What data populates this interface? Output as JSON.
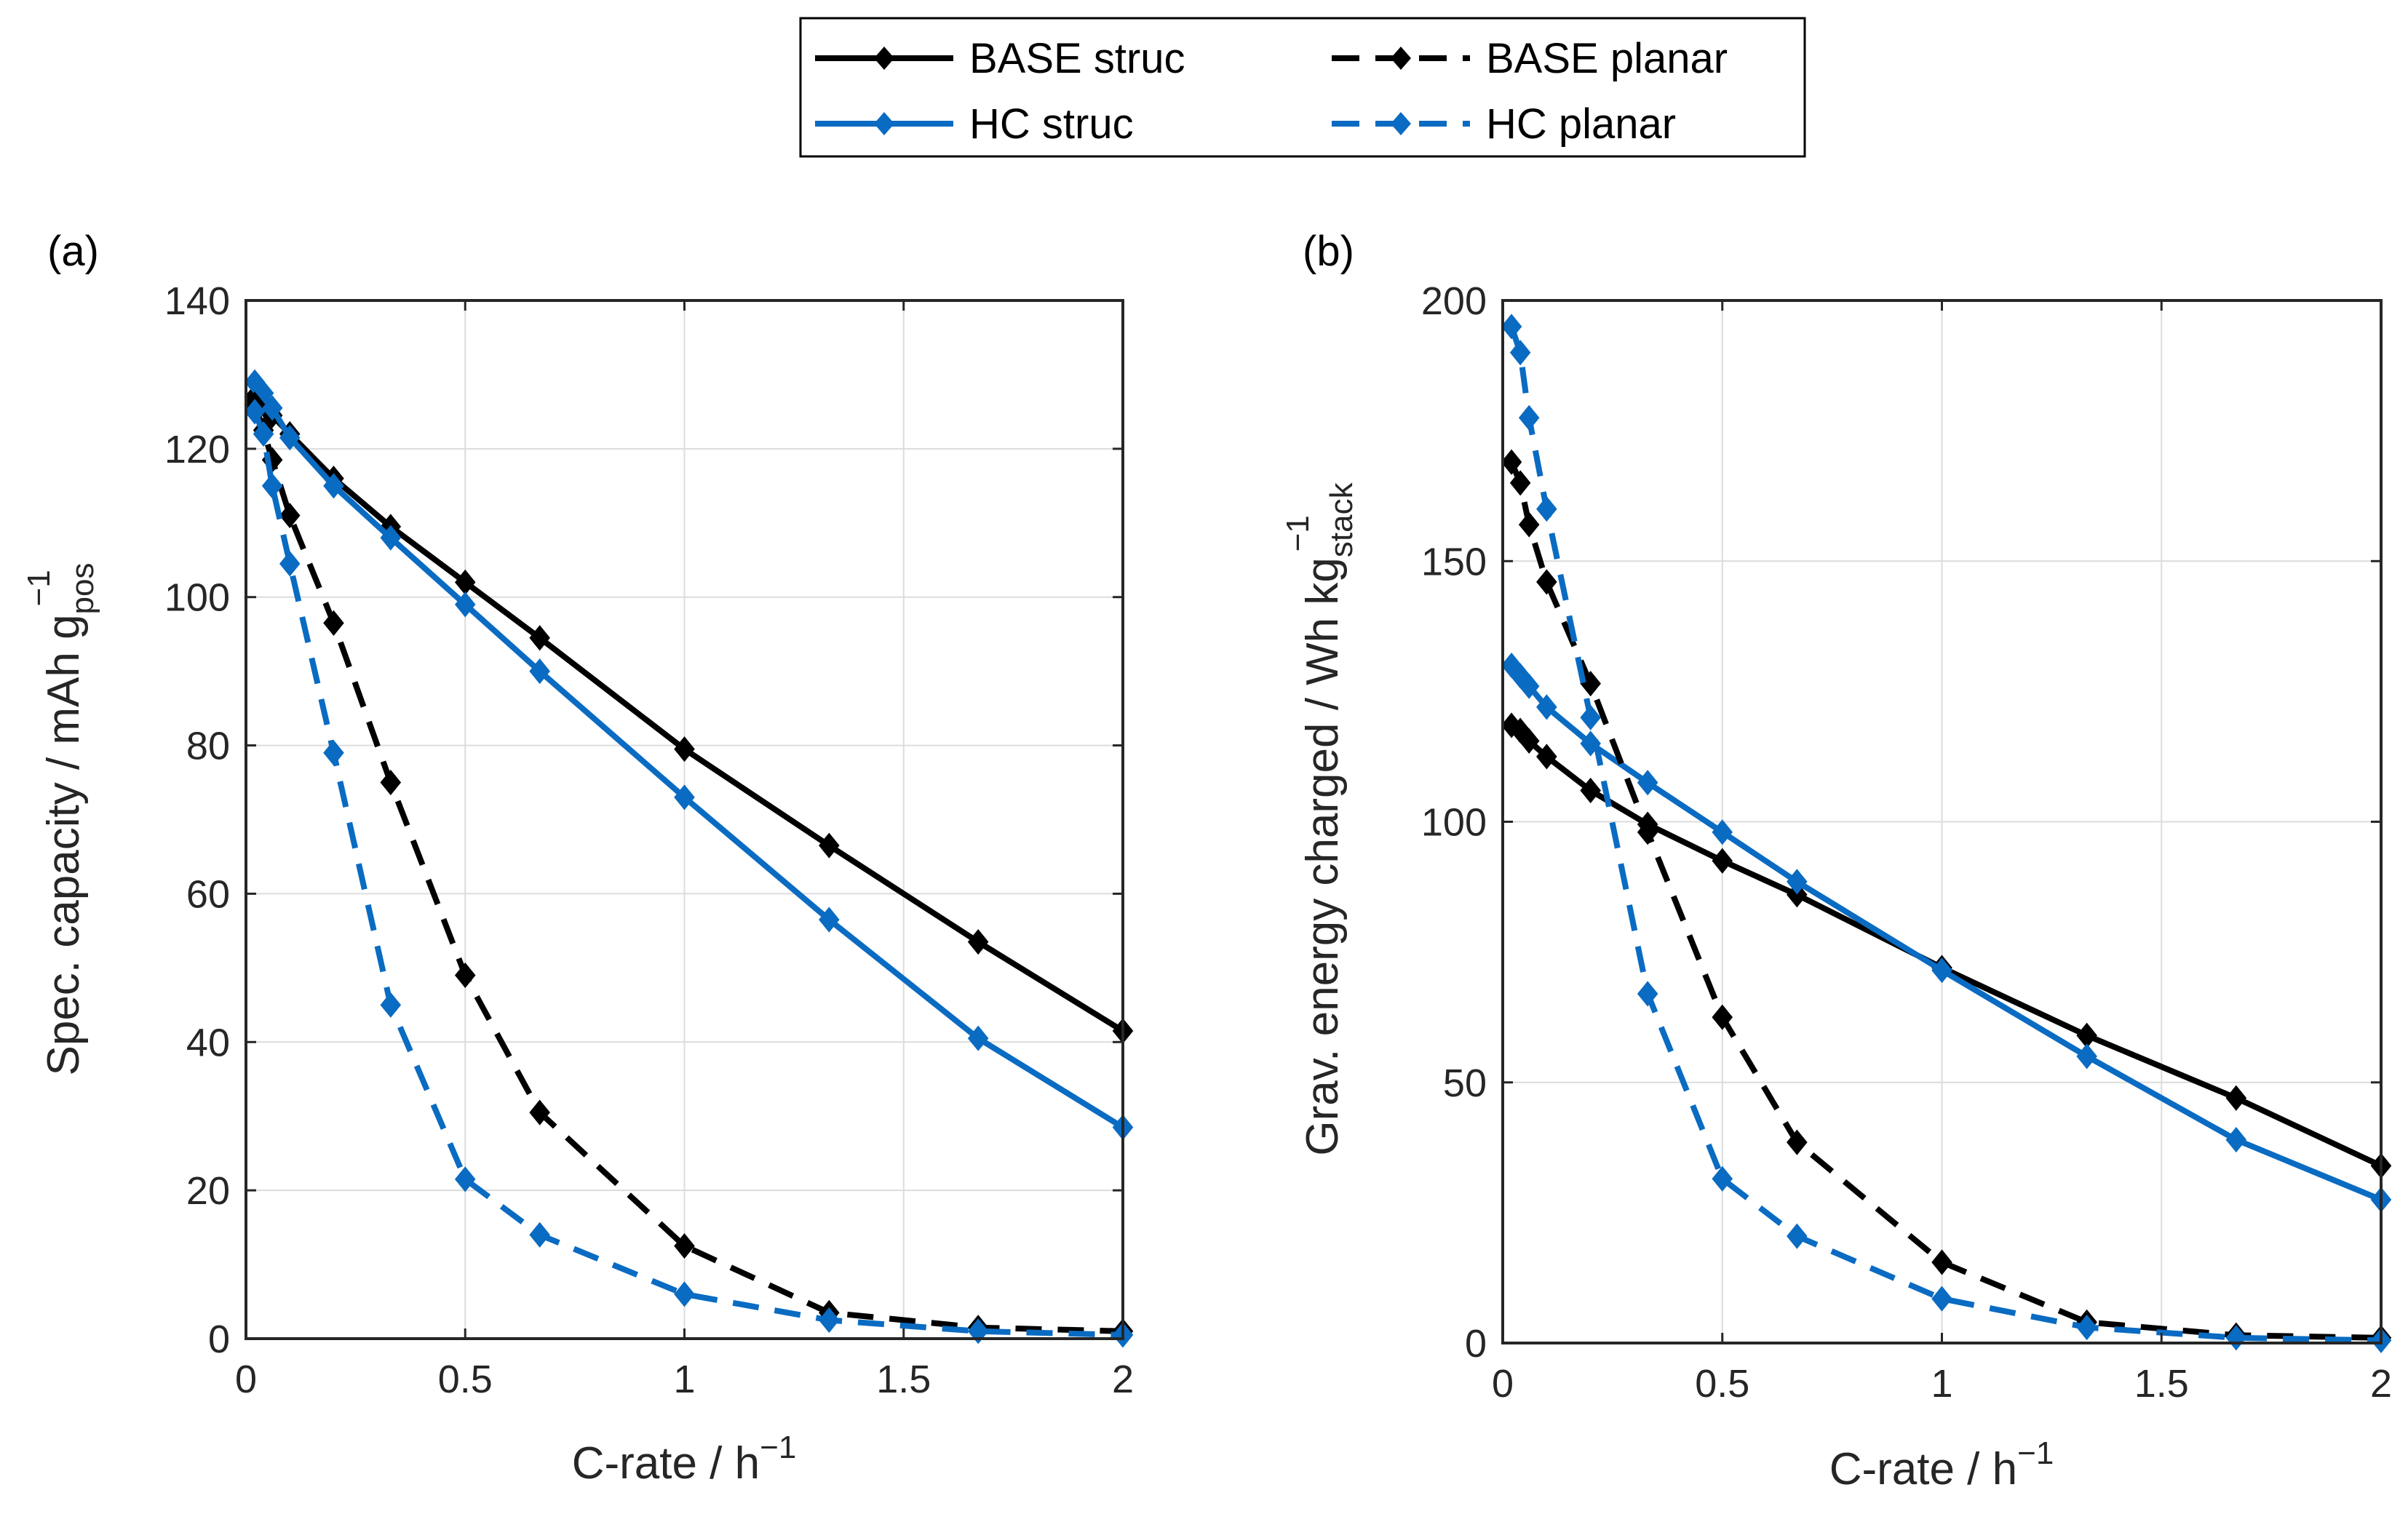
{
  "chart_data": [
    {
      "type": "line",
      "panel_label": "(a)",
      "xlabel": "C-rate / h",
      "xlabel_sup": "−1",
      "ylabel": "Spec. capacity / mAh g",
      "ylabel_sub": "pos",
      "ylabel_sup": "−1",
      "xlim": [
        0,
        2
      ],
      "ylim": [
        0,
        140
      ],
      "xticks": [
        "0",
        "0.5",
        "1",
        "1.5",
        "2"
      ],
      "xtick_values": [
        0,
        0.5,
        1,
        1.5,
        2
      ],
      "yticks": [
        "0",
        "20",
        "40",
        "60",
        "80",
        "100",
        "120",
        "140"
      ],
      "ytick_values": [
        0,
        20,
        40,
        60,
        80,
        100,
        120,
        140
      ],
      "grid": true,
      "series": [
        {
          "name": "BASE struc",
          "x": [
            0.02,
            0.04,
            0.06,
            0.1,
            0.2,
            0.33,
            0.5,
            0.67,
            1.0,
            1.33,
            1.67,
            2.0
          ],
          "y": [
            127,
            126,
            124.5,
            122,
            116,
            109.5,
            102,
            94.5,
            79.5,
            66.5,
            53.5,
            41.5
          ]
        },
        {
          "name": "HC struc",
          "x": [
            0.02,
            0.04,
            0.06,
            0.1,
            0.2,
            0.33,
            0.5,
            0.67,
            1.0,
            1.33,
            1.67,
            2.0
          ],
          "y": [
            129,
            127.5,
            125.5,
            121.5,
            115,
            108,
            99,
            90,
            73,
            56.5,
            40.5,
            28.5
          ]
        },
        {
          "name": "BASE planar",
          "x": [
            0.02,
            0.04,
            0.06,
            0.1,
            0.2,
            0.33,
            0.5,
            0.67,
            1.0,
            1.33,
            1.67,
            2.0
          ],
          "y": [
            126,
            122.5,
            118.5,
            111,
            96.5,
            75,
            49,
            30.5,
            12.5,
            3.5,
            1.5,
            1
          ]
        },
        {
          "name": "HC planar",
          "x": [
            0.02,
            0.04,
            0.06,
            0.1,
            0.2,
            0.33,
            0.5,
            0.67,
            1.0,
            1.33,
            1.67,
            2.0
          ],
          "y": [
            125,
            122,
            115,
            104.5,
            79,
            45,
            21.5,
            14,
            6,
            2.5,
            1,
            0.5
          ]
        }
      ]
    },
    {
      "type": "line",
      "panel_label": "(b)",
      "xlabel": "C-rate / h",
      "xlabel_sup": "−1",
      "ylabel": "Grav. energy charged / Wh kg",
      "ylabel_sub": "stack",
      "ylabel_sup": "−1",
      "xlim": [
        0,
        2
      ],
      "ylim": [
        0,
        200
      ],
      "xticks": [
        "0",
        "0.5",
        "1",
        "1.5",
        "2"
      ],
      "xtick_values": [
        0,
        0.5,
        1,
        1.5,
        2
      ],
      "yticks": [
        "0",
        "50",
        "100",
        "150",
        "200"
      ],
      "ytick_values": [
        0,
        50,
        100,
        150,
        200
      ],
      "grid": true,
      "series": [
        {
          "name": "BASE struc",
          "x": [
            0.02,
            0.04,
            0.06,
            0.1,
            0.2,
            0.33,
            0.5,
            0.67,
            1.0,
            1.33,
            1.67,
            2.0
          ],
          "y": [
            118.5,
            117.5,
            115.5,
            112.5,
            106,
            99.5,
            92.5,
            86,
            72,
            59,
            47,
            34
          ]
        },
        {
          "name": "HC struc",
          "x": [
            0.02,
            0.04,
            0.06,
            0.1,
            0.2,
            0.33,
            0.5,
            0.67,
            1.0,
            1.33,
            1.67,
            2.0
          ],
          "y": [
            130,
            128,
            126,
            122,
            115,
            107.5,
            98,
            88.5,
            71.5,
            55,
            39,
            27.5
          ]
        },
        {
          "name": "BASE planar",
          "x": [
            0.02,
            0.04,
            0.06,
            0.1,
            0.2,
            0.33,
            0.5,
            0.67,
            1.0,
            1.33,
            1.67,
            2.0
          ],
          "y": [
            169,
            165,
            157,
            146,
            126.5,
            98,
            62.5,
            38.5,
            15.5,
            4,
            1.5,
            1
          ]
        },
        {
          "name": "HC planar",
          "x": [
            0.02,
            0.04,
            0.06,
            0.1,
            0.2,
            0.33,
            0.5,
            0.67,
            1.0,
            1.33,
            1.67,
            2.0
          ],
          "y": [
            195,
            190,
            177.5,
            160,
            120,
            67,
            31.5,
            20.5,
            8.5,
            3,
            1,
            0.5
          ]
        }
      ]
    }
  ],
  "legend": {
    "placement": "top-center",
    "entries": [
      {
        "name": "BASE struc",
        "color": "#000000",
        "dash": "solid"
      },
      {
        "name": "BASE planar",
        "color": "#000000",
        "dash": "dashed"
      },
      {
        "name": "HC struc",
        "color": "#0072BD",
        "dash": "solid"
      },
      {
        "name": "HC planar",
        "color": "#0072BD",
        "dash": "dashed"
      }
    ]
  },
  "colors": {
    "BASE struc": "#000000",
    "HC struc": "#0A6BC2",
    "BASE planar": "#000000",
    "HC planar": "#0A6BC2"
  }
}
